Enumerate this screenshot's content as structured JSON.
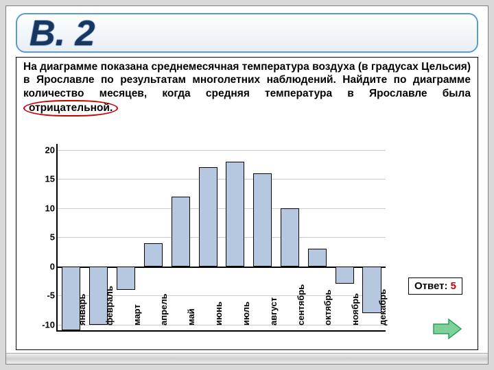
{
  "title": "B. 2",
  "problem_html": "На диаграмме показана среднемесячная температура воздуха (в градусах Цельсия) в Ярославле по результатам многолетних наблюдений. Найдите по диаграмме количество месяцев, когда средняя температура в Ярославле была ",
  "circled_word": "отрицательной.",
  "chart": {
    "type": "bar",
    "months": [
      "январь",
      "февраль",
      "март",
      "апрель",
      "май",
      "июнь",
      "июль",
      "август",
      "сентябрь",
      "октябрь",
      "ноябрь",
      "декабрь"
    ],
    "values": [
      -11,
      -10,
      -4,
      4,
      12,
      17,
      18,
      16,
      10,
      3,
      -3,
      -8
    ],
    "ymin": -11,
    "ymax": 21,
    "yticks": [
      -10,
      -5,
      0,
      5,
      10,
      15,
      20
    ],
    "bar_fill": "#b6c8e0",
    "bar_border": "#000000",
    "grid_color": "#cccccc",
    "axis_color": "#000000",
    "zero_line": 0,
    "label_y_from_zero": -35
  },
  "answer_label": "Ответ:",
  "answer_value": "5",
  "nav_arrow_color": "#2aa05a"
}
